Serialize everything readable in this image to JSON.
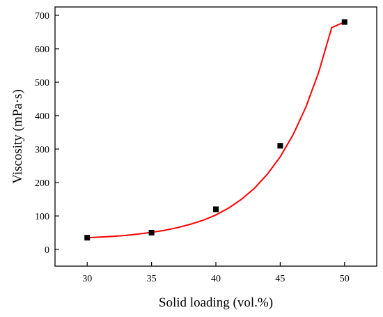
{
  "chart_data": {
    "type": "scatter",
    "title": "",
    "xlabel": "Solid loading (vol.%)",
    "ylabel": "Viscosity (mPa·s)",
    "xlim": [
      27.5,
      52.5
    ],
    "ylim": [
      -50,
      725
    ],
    "xticks": [
      30,
      35,
      40,
      45,
      50
    ],
    "yticks": [
      0,
      100,
      200,
      300,
      400,
      500,
      600,
      700
    ],
    "xtick_labels": [
      "30",
      "35",
      "40",
      "45",
      "50"
    ],
    "ytick_labels": [
      "0",
      "100",
      "200",
      "300",
      "400",
      "500",
      "600",
      "700"
    ],
    "grid": false,
    "legend": "none",
    "series": [
      {
        "kind": "scatter",
        "marker": "square",
        "color": "#000000",
        "x": [
          30,
          35,
          40,
          45,
          50
        ],
        "y": [
          35,
          50,
          120,
          310,
          680
        ]
      },
      {
        "kind": "line",
        "color": "#ff0000",
        "x": [
          30,
          31,
          32,
          33,
          34,
          35,
          36,
          37,
          38,
          39,
          40,
          41,
          42,
          43,
          44,
          45,
          46,
          47,
          48,
          49,
          50
        ],
        "y": [
          35,
          37,
          39,
          42,
          46,
          51,
          57,
          65,
          75,
          87,
          103,
          124,
          150,
          183,
          225,
          277,
          343,
          426,
          531,
          663,
          680
        ]
      }
    ]
  }
}
